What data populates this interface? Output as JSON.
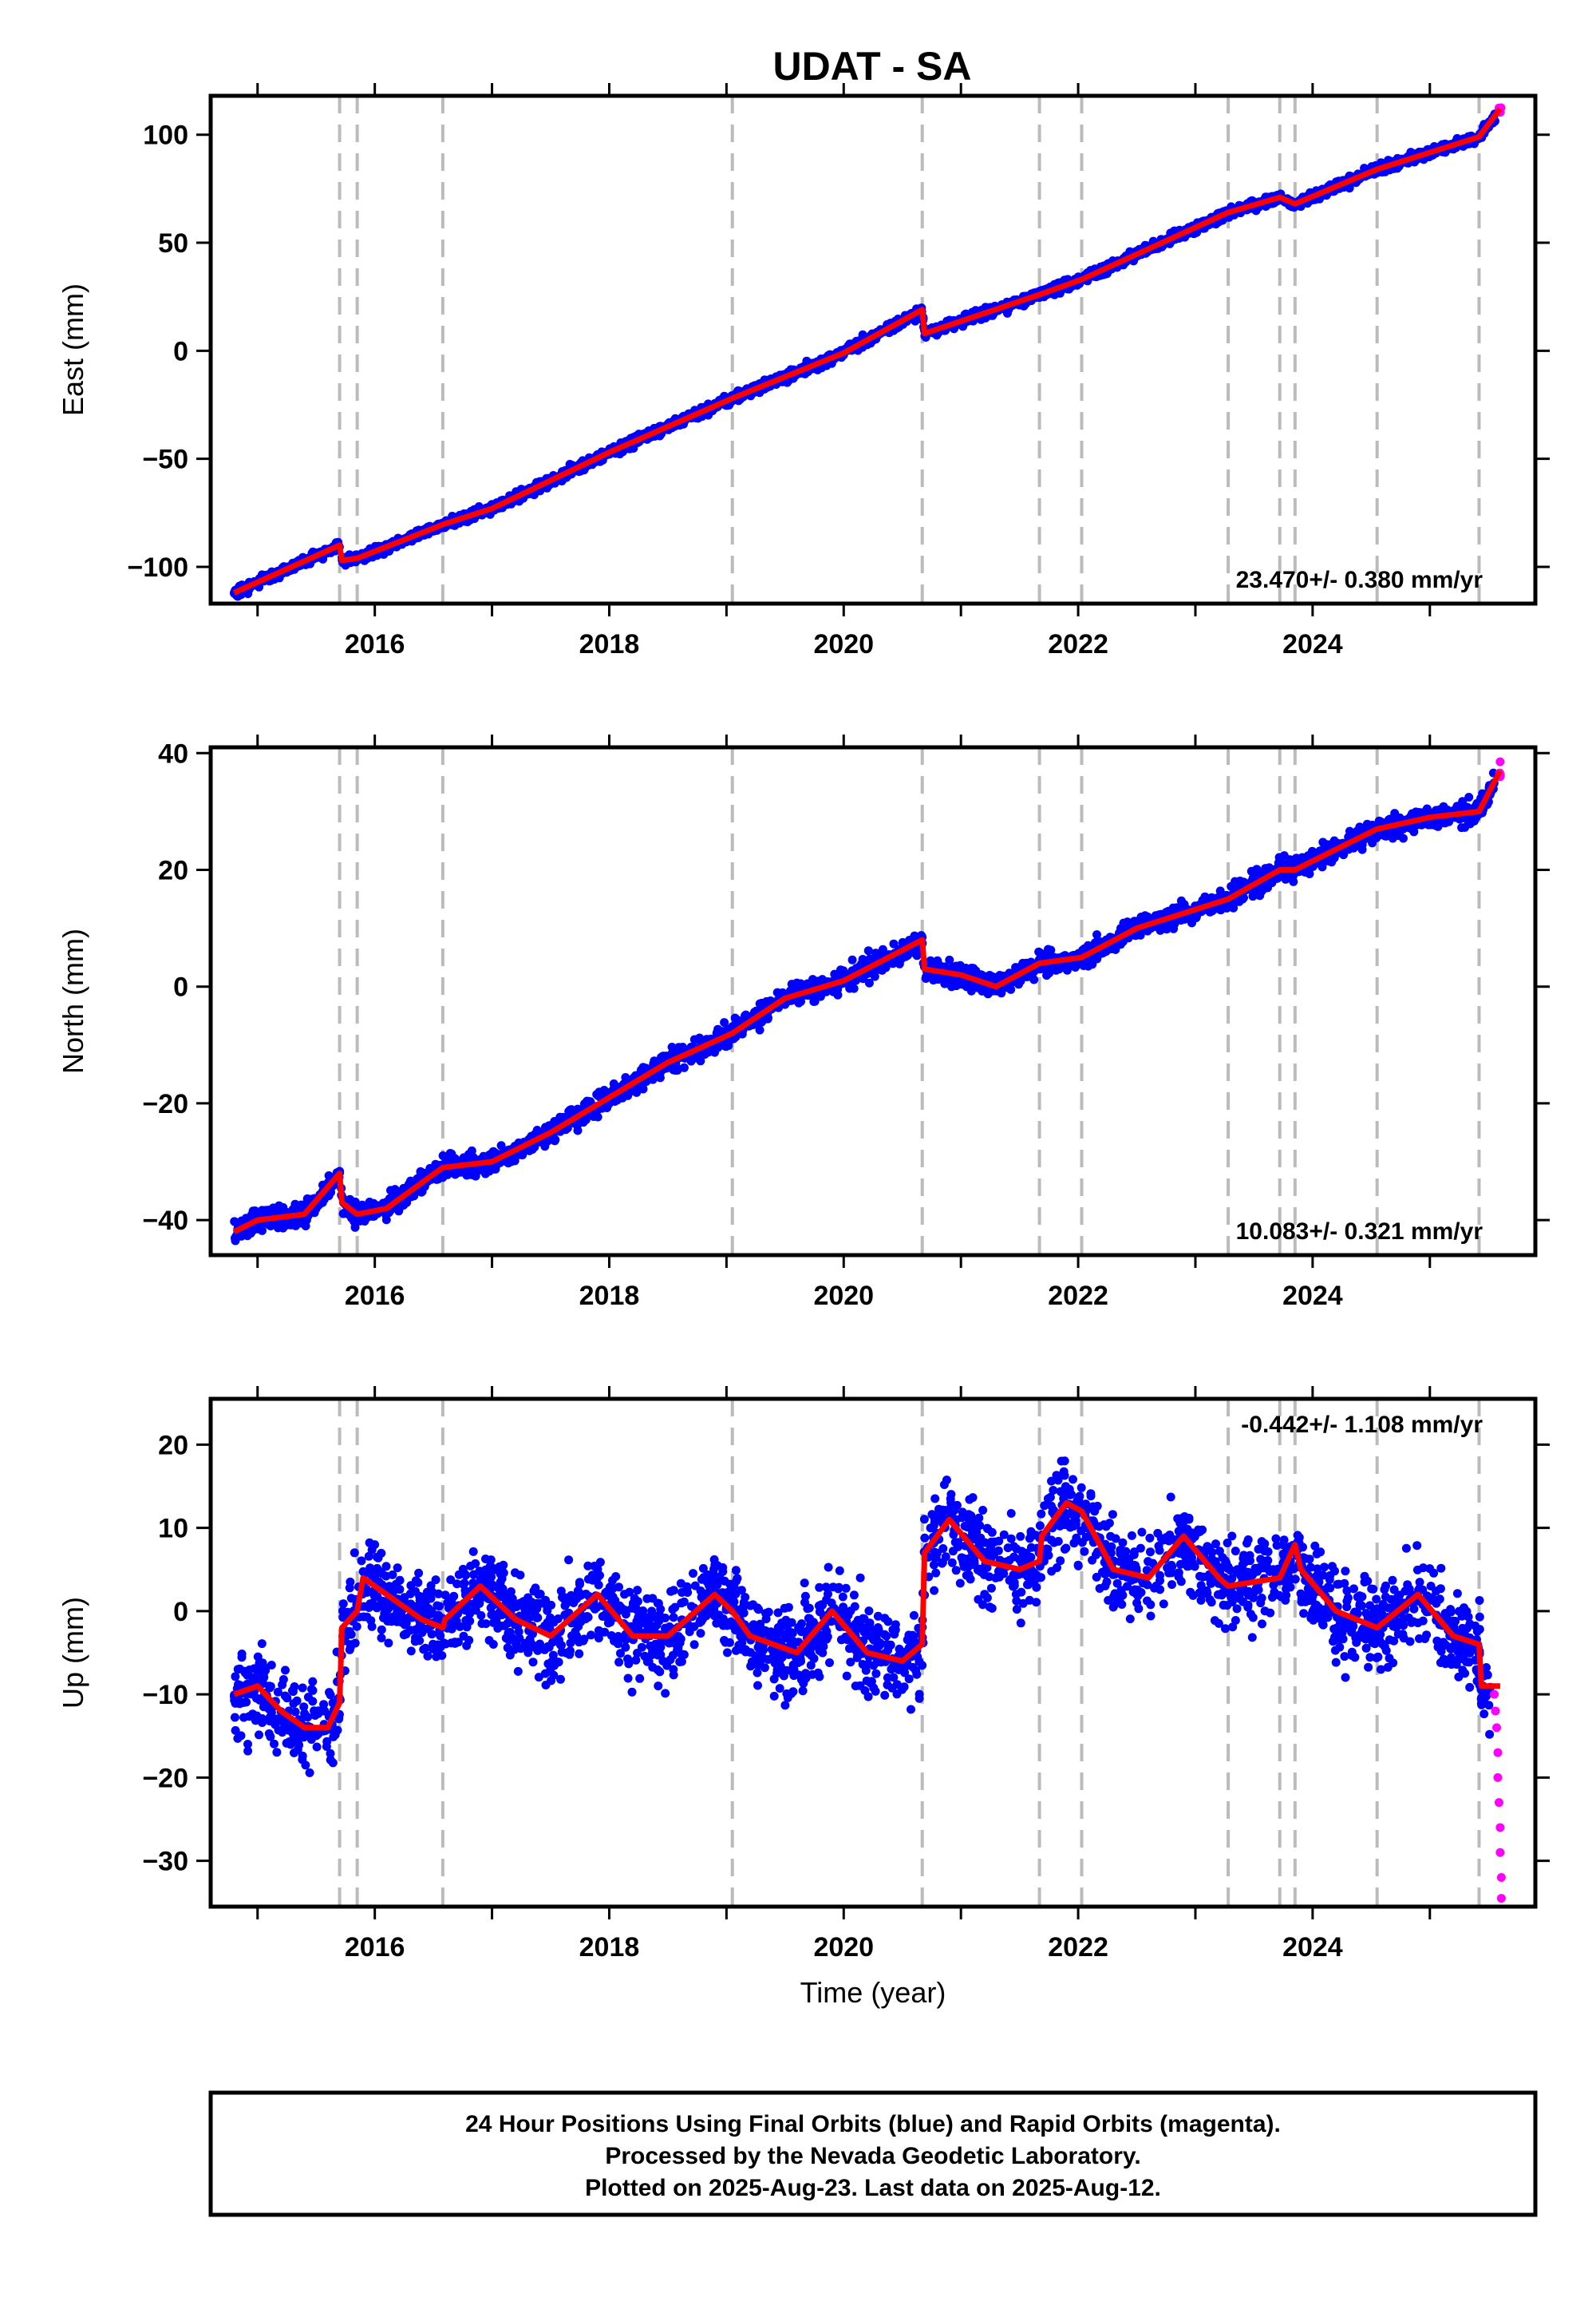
{
  "title": "UDAT - SA",
  "footer": {
    "line1": "24 Hour Positions Using Final Orbits (blue) and Rapid Orbits (magenta).",
    "line2": "Processed by the Nevada Geodetic Laboratory.",
    "line3": "Plotted on 2025-Aug-23. Last data on 2025-Aug-12."
  },
  "colors": {
    "final": "#0000ff",
    "rapid": "#ff00ff",
    "model": "#ff0000",
    "event_line": "#bbbbbb"
  },
  "chart_data": [
    {
      "type": "scatter",
      "ylabel": "East (mm)",
      "xlabel": "",
      "xlim": [
        2014.6,
        2025.9
      ],
      "ylim": [
        -117,
        118
      ],
      "yticks": [
        -100,
        -50,
        0,
        50,
        100
      ],
      "xticks": [
        2016,
        2018,
        2020,
        2022,
        2024
      ],
      "rate_text": "23.470+/- 0.380 mm/yr",
      "rate_position": "bottom-right",
      "event_lines": [
        2015.7,
        2015.85,
        2016.58,
        2019.05,
        2020.67,
        2021.67,
        2022.03,
        2023.28,
        2023.72,
        2023.85,
        2024.55,
        2025.42
      ],
      "series": [
        {
          "name": "Final Orbits",
          "kind": "points"
        },
        {
          "name": "Rapid Orbits",
          "kind": "points"
        },
        {
          "name": "Model",
          "kind": "line",
          "points": [
            [
              2014.8,
              -112
            ],
            [
              2015.7,
              -90
            ],
            [
              2015.72,
              -97
            ],
            [
              2015.85,
              -96
            ],
            [
              2016.6,
              -80
            ],
            [
              2017.0,
              -73
            ],
            [
              2018.0,
              -47
            ],
            [
              2019.05,
              -22
            ],
            [
              2020.0,
              -1
            ],
            [
              2020.67,
              19
            ],
            [
              2020.69,
              8
            ],
            [
              2021.67,
              26
            ],
            [
              2022.03,
              33
            ],
            [
              2023.28,
              64
            ],
            [
              2023.72,
              71
            ],
            [
              2023.85,
              68
            ],
            [
              2024.55,
              84
            ],
            [
              2025.42,
              99
            ],
            [
              2025.6,
              112
            ]
          ]
        }
      ]
    },
    {
      "type": "scatter",
      "ylabel": "North (mm)",
      "xlabel": "",
      "xlim": [
        2014.6,
        2025.9
      ],
      "ylim": [
        -46,
        41
      ],
      "yticks": [
        -40,
        -20,
        0,
        20,
        40
      ],
      "xticks": [
        2016,
        2018,
        2020,
        2022,
        2024
      ],
      "rate_text": "10.083+/- 0.321 mm/yr",
      "rate_position": "bottom-right",
      "event_lines": [
        2015.7,
        2015.85,
        2016.58,
        2019.05,
        2020.67,
        2021.67,
        2022.03,
        2023.28,
        2023.72,
        2023.85,
        2024.55,
        2025.42
      ],
      "series": [
        {
          "name": "Final Orbits",
          "kind": "points"
        },
        {
          "name": "Rapid Orbits",
          "kind": "points"
        },
        {
          "name": "Model",
          "kind": "line",
          "points": [
            [
              2014.8,
              -42
            ],
            [
              2015.0,
              -40
            ],
            [
              2015.4,
              -39
            ],
            [
              2015.7,
              -32
            ],
            [
              2015.72,
              -37
            ],
            [
              2015.85,
              -39
            ],
            [
              2016.1,
              -38
            ],
            [
              2016.58,
              -31
            ],
            [
              2017.0,
              -30
            ],
            [
              2017.5,
              -25
            ],
            [
              2018.0,
              -19
            ],
            [
              2018.5,
              -13
            ],
            [
              2019.05,
              -8
            ],
            [
              2019.5,
              -2
            ],
            [
              2020.0,
              1
            ],
            [
              2020.67,
              8
            ],
            [
              2020.69,
              3
            ],
            [
              2021.0,
              2
            ],
            [
              2021.3,
              0
            ],
            [
              2021.67,
              4
            ],
            [
              2022.03,
              5
            ],
            [
              2022.5,
              10
            ],
            [
              2023.28,
              15
            ],
            [
              2023.72,
              20
            ],
            [
              2023.85,
              20
            ],
            [
              2024.55,
              27
            ],
            [
              2025.0,
              29
            ],
            [
              2025.42,
              30
            ],
            [
              2025.6,
              37
            ]
          ]
        }
      ]
    },
    {
      "type": "scatter",
      "ylabel": "Up (mm)",
      "xlabel": "Time (year)",
      "xlim": [
        2014.6,
        2025.9
      ],
      "ylim": [
        -35.5,
        25.5
      ],
      "yticks": [
        -30,
        -20,
        -10,
        0,
        10,
        20
      ],
      "xticks": [
        2016,
        2018,
        2020,
        2022,
        2024
      ],
      "rate_text": "-0.442+/- 1.108 mm/yr",
      "rate_position": "top-right",
      "event_lines": [
        2015.7,
        2015.85,
        2016.58,
        2019.05,
        2020.67,
        2021.67,
        2022.03,
        2023.28,
        2023.72,
        2023.85,
        2024.55,
        2025.42
      ],
      "series": [
        {
          "name": "Final Orbits",
          "kind": "points"
        },
        {
          "name": "Rapid Orbits",
          "kind": "points",
          "points": [
            [
              2025.55,
              -10
            ],
            [
              2025.56,
              -12
            ],
            [
              2025.57,
              -14
            ],
            [
              2025.58,
              -17
            ],
            [
              2025.58,
              -20
            ],
            [
              2025.59,
              -23
            ],
            [
              2025.6,
              -26
            ],
            [
              2025.6,
              -29
            ],
            [
              2025.61,
              -32
            ],
            [
              2025.61,
              -34.5
            ]
          ]
        },
        {
          "name": "Model",
          "kind": "line",
          "points": [
            [
              2014.8,
              -10
            ],
            [
              2015.0,
              -9
            ],
            [
              2015.2,
              -12
            ],
            [
              2015.4,
              -14
            ],
            [
              2015.6,
              -14
            ],
            [
              2015.7,
              -11
            ],
            [
              2015.72,
              -2
            ],
            [
              2015.85,
              0
            ],
            [
              2015.9,
              4
            ],
            [
              2016.1,
              2
            ],
            [
              2016.4,
              -1
            ],
            [
              2016.58,
              -2
            ],
            [
              2016.6,
              -1
            ],
            [
              2016.9,
              3
            ],
            [
              2017.2,
              -1
            ],
            [
              2017.5,
              -3
            ],
            [
              2017.9,
              2
            ],
            [
              2018.2,
              -3
            ],
            [
              2018.5,
              -3
            ],
            [
              2018.9,
              2
            ],
            [
              2019.05,
              0
            ],
            [
              2019.2,
              -3
            ],
            [
              2019.6,
              -5
            ],
            [
              2019.9,
              0
            ],
            [
              2020.2,
              -5
            ],
            [
              2020.5,
              -6
            ],
            [
              2020.67,
              -4
            ],
            [
              2020.69,
              7
            ],
            [
              2020.9,
              11
            ],
            [
              2021.2,
              6
            ],
            [
              2021.5,
              5
            ],
            [
              2021.67,
              6
            ],
            [
              2021.69,
              9
            ],
            [
              2021.9,
              13
            ],
            [
              2022.03,
              12
            ],
            [
              2022.3,
              5
            ],
            [
              2022.6,
              4
            ],
            [
              2022.9,
              9
            ],
            [
              2023.2,
              4
            ],
            [
              2023.28,
              3
            ],
            [
              2023.72,
              4
            ],
            [
              2023.85,
              8
            ],
            [
              2023.9,
              5
            ],
            [
              2024.2,
              0
            ],
            [
              2024.55,
              -2
            ],
            [
              2024.9,
              2
            ],
            [
              2025.2,
              -3
            ],
            [
              2025.42,
              -4
            ],
            [
              2025.44,
              -9
            ],
            [
              2025.6,
              -9
            ]
          ]
        }
      ]
    }
  ]
}
